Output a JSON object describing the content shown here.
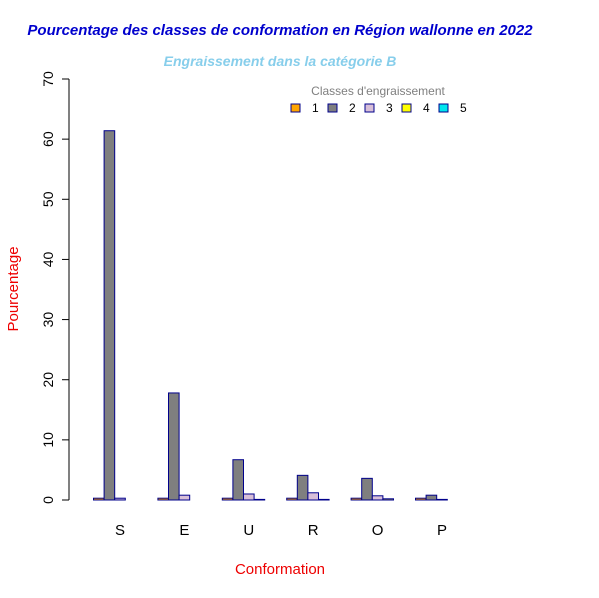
{
  "chart_data": {
    "type": "bar",
    "title": "Pourcentage des classes de conformation en Région wallonne en 2022",
    "subtitle": "Engraissement dans la catégorie B",
    "xlabel": "Conformation",
    "ylabel": "Pourcentage",
    "categories": [
      "S",
      "E",
      "U",
      "R",
      "O",
      "P"
    ],
    "ylim": [
      0,
      70
    ],
    "yticks": [
      "0",
      "10",
      "20",
      "30",
      "40",
      "50",
      "60",
      "70"
    ],
    "legend": {
      "title": "Classes d'engraissement",
      "position": "top-right"
    },
    "series": [
      {
        "name": "1",
        "color": "#FFA500",
        "values": [
          0.3,
          0.3,
          0.3,
          0.3,
          0.3,
          0.3
        ]
      },
      {
        "name": "2",
        "color": "#7F7F7F",
        "values": [
          61.4,
          17.8,
          6.7,
          4.1,
          3.6,
          0.8
        ]
      },
      {
        "name": "3",
        "color": "#D8BFD8",
        "values": [
          0.3,
          0.8,
          1.0,
          1.2,
          0.7,
          0.1
        ]
      },
      {
        "name": "4",
        "color": "#FFFF00",
        "values": [
          0.0,
          0.0,
          0.1,
          0.1,
          0.2,
          0.0
        ]
      },
      {
        "name": "5",
        "color": "#00E5EE",
        "values": [
          0.0,
          0.0,
          0.0,
          0.0,
          0.0,
          0.0
        ]
      }
    ],
    "colors": {
      "title": "#0000CD",
      "subtitle": "#87CEEB",
      "axis_label": "#EE0000",
      "legend_title": "#7F7F7F",
      "bar_border": "#00008B"
    }
  }
}
